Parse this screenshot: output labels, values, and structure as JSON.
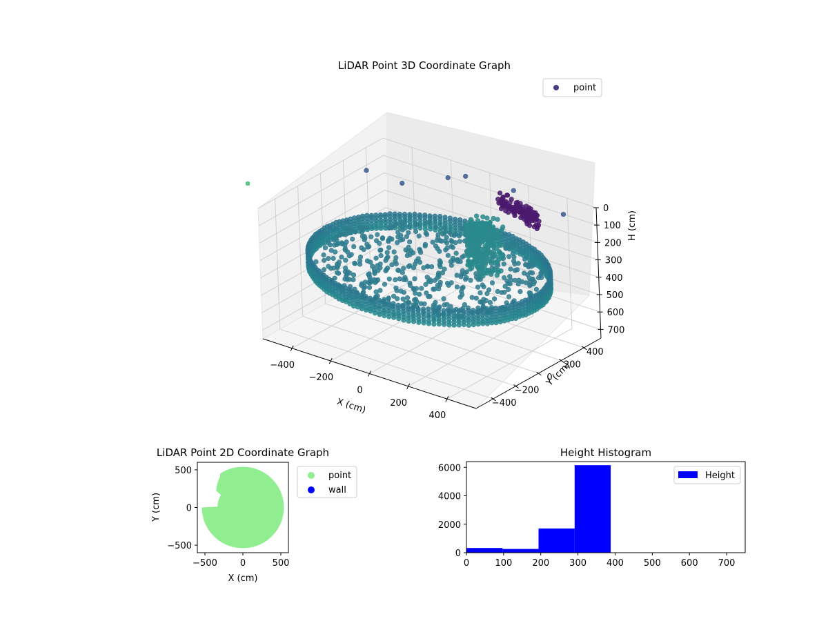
{
  "chart_data": [
    {
      "type": "scatter",
      "title": "LiDAR Point 3D Coordinate Graph",
      "xlabel": "X (cm)",
      "ylabel": "Y (cm)",
      "zlabel": "H (cm)",
      "xlim": [
        -550,
        550
      ],
      "ylim": [
        -550,
        550
      ],
      "zlim": [
        0,
        750
      ],
      "z_inverted": true,
      "x_ticks": [
        "−400",
        "−200",
        "0",
        "200",
        "400"
      ],
      "y_ticks": [
        "−400",
        "−200",
        "0",
        "200",
        "400"
      ],
      "z_ticks": [
        "0",
        "100",
        "200",
        "300",
        "400",
        "500",
        "600",
        "700"
      ],
      "legend": {
        "placement": "upper-right",
        "entries": [
          {
            "label": "point",
            "color": "#433e85"
          }
        ]
      },
      "colormap": "viridis",
      "grid": true,
      "ring_radius": 540,
      "ring_height": [
        310,
        390
      ]
    },
    {
      "type": "scatter",
      "title": "LiDAR Point 2D Coordinate Graph",
      "xlabel": "X (cm)",
      "ylabel": "Y (cm)",
      "xlim": [
        -600,
        600
      ],
      "ylim": [
        -600,
        600
      ],
      "x_ticks": [
        "−500",
        "0",
        "500"
      ],
      "y_ticks": [
        "500",
        "0",
        "−500"
      ],
      "series": [
        {
          "name": "point",
          "color": "#90ee90"
        },
        {
          "name": "wall",
          "color": "#0000ff"
        }
      ],
      "disk_radius": 540,
      "legend": {
        "placement": "outside-right"
      }
    },
    {
      "type": "bar",
      "title": "Height Histogram",
      "xlabel": "",
      "ylabel": "",
      "xlim": [
        0,
        750
      ],
      "ylim": [
        0,
        6400
      ],
      "x_ticks": [
        "0",
        "100",
        "200",
        "300",
        "400",
        "500",
        "600",
        "700"
      ],
      "y_ticks": [
        "0",
        "2000",
        "4000",
        "6000"
      ],
      "bins": [
        {
          "start": 0,
          "end": 97,
          "count": 330
        },
        {
          "start": 97,
          "end": 194,
          "count": 260
        },
        {
          "start": 194,
          "end": 291,
          "count": 1700
        },
        {
          "start": 291,
          "end": 388,
          "count": 6150
        },
        {
          "start": 388,
          "end": 485,
          "count": 0
        },
        {
          "start": 485,
          "end": 582,
          "count": 0
        },
        {
          "start": 582,
          "end": 679,
          "count": 0
        },
        {
          "start": 679,
          "end": 776,
          "count": 0
        }
      ],
      "color": "#0000ff",
      "legend": {
        "placement": "upper-right",
        "entries": [
          {
            "label": "Height",
            "color": "#0000ff"
          }
        ]
      }
    }
  ]
}
